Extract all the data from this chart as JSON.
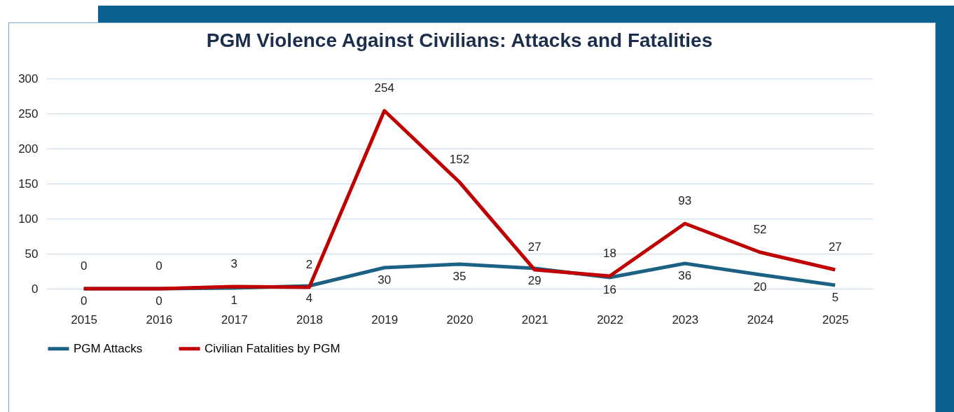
{
  "chart_data": {
    "type": "line",
    "title": "PGM Violence Against Civilians: Attacks and Fatalities",
    "categories": [
      "2015",
      "2016",
      "2017",
      "2018",
      "2019",
      "2020",
      "2021",
      "2022",
      "2023",
      "2024",
      "2025"
    ],
    "series": [
      {
        "name": "PGM Attacks",
        "color": "#1b6184",
        "values": [
          0,
          0,
          1,
          4,
          30,
          35,
          29,
          16,
          36,
          20,
          5
        ]
      },
      {
        "name": "Civilian Fatalities by PGM",
        "color": "#c00000",
        "values": [
          0,
          0,
          3,
          2,
          254,
          152,
          27,
          18,
          93,
          52,
          27
        ]
      }
    ],
    "ylim": [
      0,
      300
    ],
    "yticks": [
      0,
      50,
      100,
      150,
      200,
      250,
      300
    ],
    "grid": "y",
    "legend": "bottom",
    "data_labels": true,
    "marker": "none",
    "line_style": "solid"
  }
}
